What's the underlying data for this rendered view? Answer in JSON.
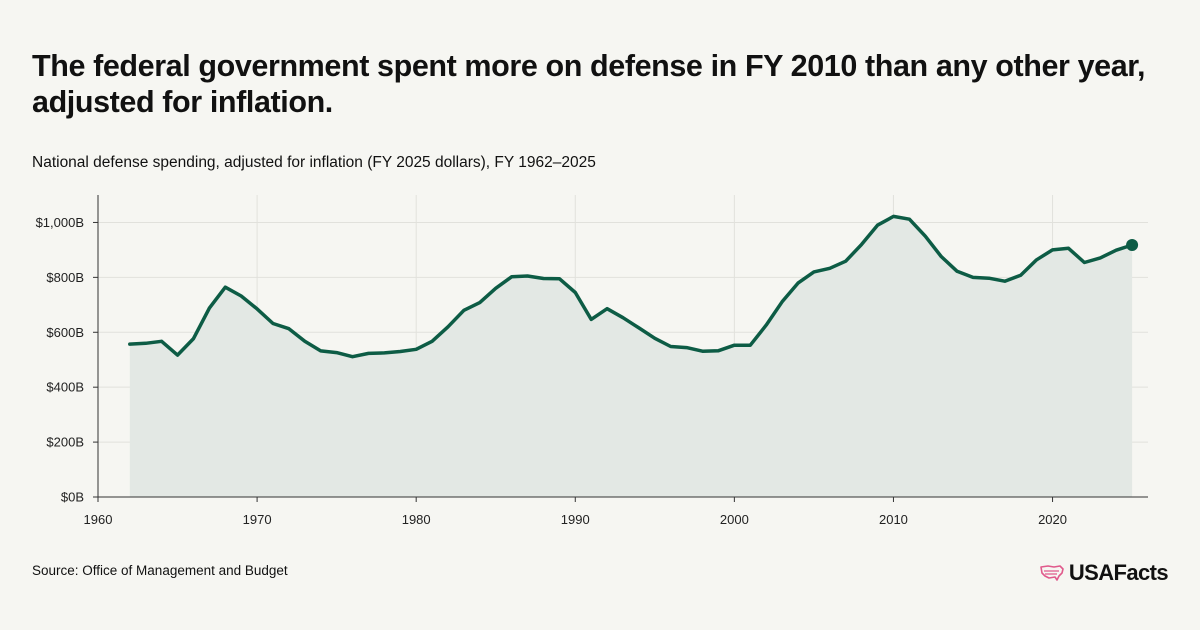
{
  "header": {
    "title": "The federal government spent more on defense in FY 2010 than any other year, adjusted for inflation.",
    "subtitle": "National defense spending, adjusted for inflation (FY 2025 dollars), FY 1962–2025"
  },
  "footer": {
    "source": "Source: Office of Management and Budget",
    "logo_text": "USAFacts"
  },
  "colors": {
    "background": "#f6f6f2",
    "line": "#0d5c45",
    "area": "#e3e8e4",
    "grid": "#e1e1dc",
    "logo_accent": "#e05a8c"
  },
  "icons": {
    "logo": "us-map-icon"
  },
  "chart_data": {
    "type": "area",
    "title": "National defense spending, adjusted for inflation (FY 2025 dollars), FY 1962–2025",
    "xlabel": "",
    "ylabel": "",
    "xlim": [
      1960,
      2026
    ],
    "ylim": [
      0,
      1100
    ],
    "x_ticks": [
      1960,
      1970,
      1980,
      1990,
      2000,
      2010,
      2020
    ],
    "y_ticks": [
      0,
      200,
      400,
      600,
      800,
      1000
    ],
    "y_tick_labels": [
      "$0B",
      "$200B",
      "$400B",
      "$600B",
      "$800B",
      "$1,000B"
    ],
    "grid": true,
    "legend": "none",
    "highlight_last_point": true,
    "x": [
      1962,
      1963,
      1964,
      1965,
      1966,
      1967,
      1968,
      1969,
      1970,
      1971,
      1972,
      1973,
      1974,
      1975,
      1976,
      1977,
      1978,
      1979,
      1980,
      1981,
      1982,
      1983,
      1984,
      1985,
      1986,
      1987,
      1988,
      1989,
      1990,
      1991,
      1992,
      1993,
      1994,
      1995,
      1996,
      1997,
      1998,
      1999,
      2000,
      2001,
      2002,
      2003,
      2004,
      2005,
      2006,
      2007,
      2008,
      2009,
      2010,
      2011,
      2012,
      2013,
      2014,
      2015,
      2016,
      2017,
      2018,
      2019,
      2020,
      2021,
      2022,
      2023,
      2024,
      2025
    ],
    "series": [
      {
        "values": [
          557,
          560,
          567,
          517,
          577,
          688,
          764,
          732,
          685,
          632,
          613,
          567,
          532,
          526,
          511,
          523,
          525,
          530,
          538,
          567,
          620,
          680,
          708,
          760,
          802,
          805,
          796,
          795,
          745,
          647,
          686,
          653,
          616,
          578,
          548,
          544,
          531,
          533,
          553,
          553,
          626,
          711,
          779,
          820,
          833,
          859,
          920,
          990,
          1022,
          1012,
          950,
          876,
          822,
          800,
          797,
          786,
          808,
          864,
          900,
          906,
          854,
          871,
          899,
          918
        ]
      }
    ]
  }
}
